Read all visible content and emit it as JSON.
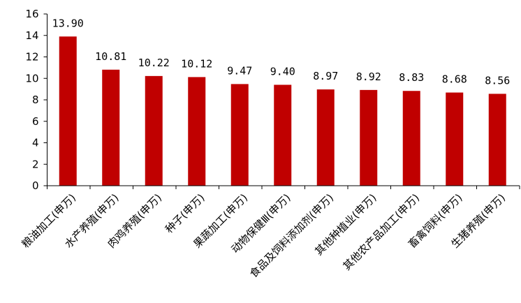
{
  "chart_data": {
    "type": "bar",
    "title": "",
    "xlabel": "",
    "ylabel": "",
    "ylim": [
      0,
      16
    ],
    "yticks": [
      0,
      2,
      4,
      6,
      8,
      10,
      12,
      14,
      16
    ],
    "grid": false,
    "categories": [
      "粮油加工(申万)",
      "水产养殖(申万)",
      "肉鸡养殖(申万)",
      "种子(申万)",
      "果蔬加工(申万)",
      "动物保健Ⅲ(申万)",
      "食品及饲料添加剂(申万)",
      "其他种植业(申万)",
      "其他农产品加工(申万)",
      "畜禽饲料(申万)",
      "生猪养殖(申万)"
    ],
    "values": [
      13.9,
      10.81,
      10.22,
      10.12,
      9.47,
      9.4,
      8.97,
      8.92,
      8.83,
      8.68,
      8.56
    ],
    "value_labels": [
      "13.90",
      "10.81",
      "10.22",
      "10.12",
      "9.47",
      "9.40",
      "8.97",
      "8.92",
      "8.83",
      "8.68",
      "8.56"
    ],
    "bar_color": "#C00000",
    "axis_color": "#000000"
  }
}
